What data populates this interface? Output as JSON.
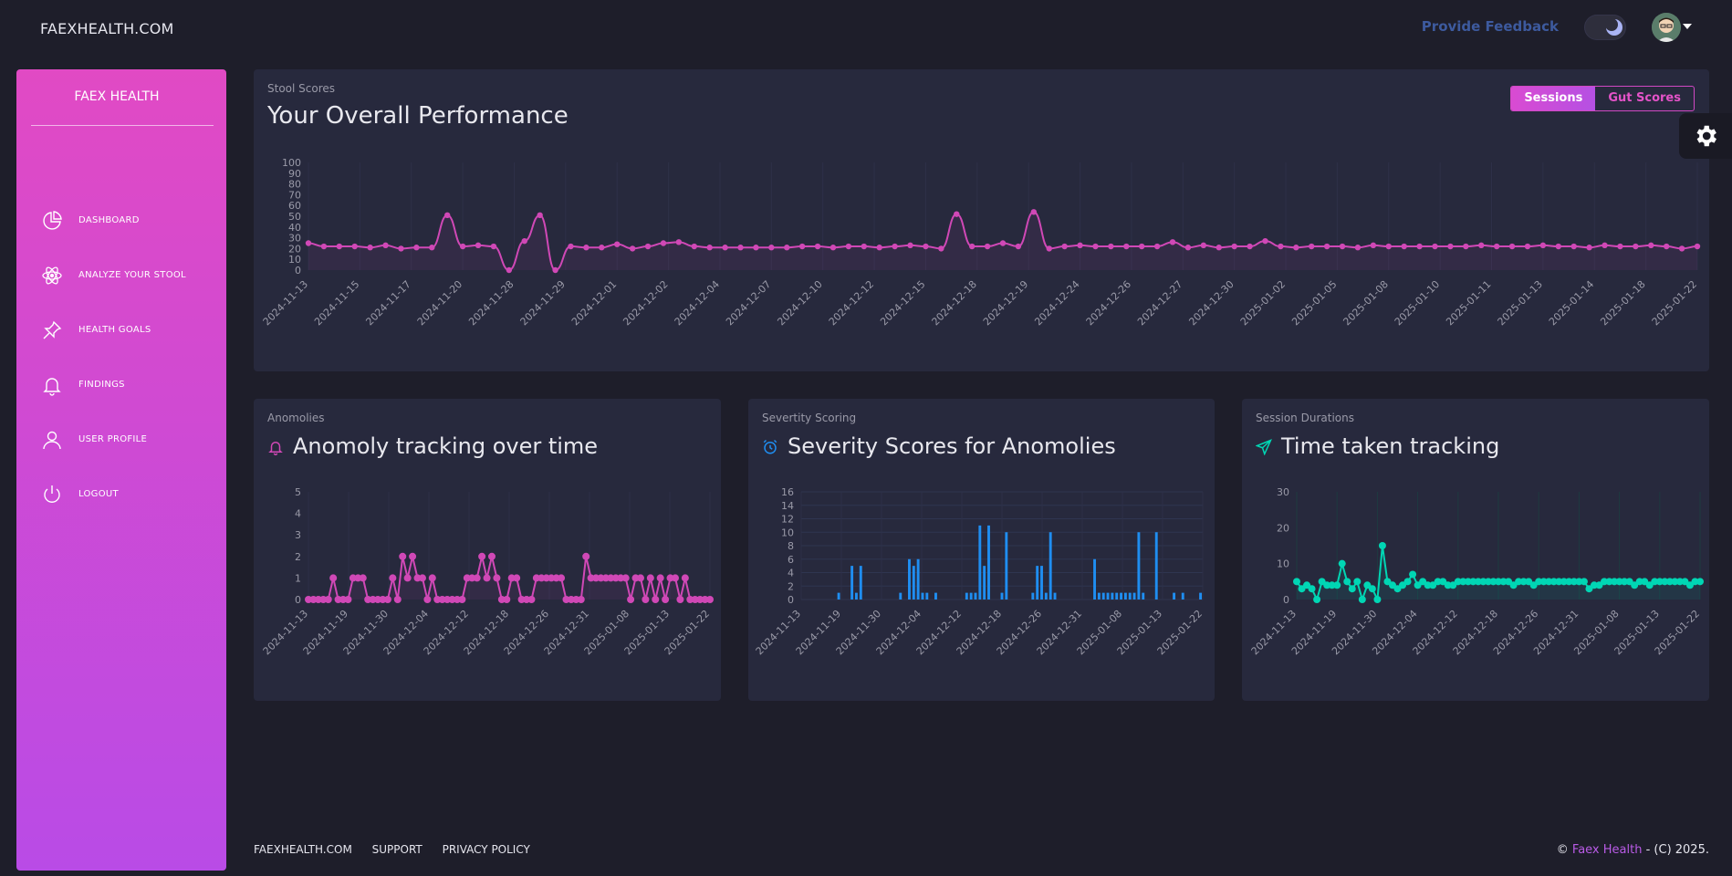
{
  "header": {
    "brand": "FAEXHEALTH.COM",
    "feedback": "Provide Feedback"
  },
  "sidebar": {
    "title": "FAEX HEALTH",
    "items": [
      {
        "label": "DASHBOARD",
        "icon": "chart-pie-icon"
      },
      {
        "label": "ANALYZE YOUR STOOL",
        "icon": "atom-icon"
      },
      {
        "label": "HEALTH GOALS",
        "icon": "pin-icon"
      },
      {
        "label": "FINDINGS",
        "icon": "bell-icon"
      },
      {
        "label": "USER PROFILE",
        "icon": "user-icon"
      },
      {
        "label": "LOGOUT",
        "icon": "power-icon"
      }
    ]
  },
  "main_chart": {
    "subtitle": "Stool Scores",
    "title": "Your Overall Performance",
    "buttons": [
      "Sessions",
      "Gut Scores"
    ],
    "active_button": "Sessions"
  },
  "cards": [
    {
      "subtitle": "Anomolies",
      "title": "Anomoly tracking over time",
      "icon": "bell-icon",
      "color": "#d048b6"
    },
    {
      "subtitle": "Severtity Scoring",
      "title": "Severity Scores for Anomolies",
      "icon": "alarm-clock-icon",
      "color": "#1f8ef1"
    },
    {
      "subtitle": "Session Durations",
      "title": "Time taken tracking",
      "icon": "send-icon",
      "color": "#00d6b4"
    }
  ],
  "chart_data": [
    {
      "type": "line",
      "ylim": [
        0,
        100
      ],
      "yticks": [
        0,
        10,
        20,
        30,
        40,
        50,
        60,
        70,
        80,
        90,
        100
      ],
      "xtick_labels": [
        "2024-11-13",
        "2024-11-15",
        "2024-11-17",
        "2024-11-20",
        "2024-11-28",
        "2024-11-29",
        "2024-12-01",
        "2024-12-02",
        "2024-12-04",
        "2024-12-07",
        "2024-12-10",
        "2024-12-12",
        "2024-12-15",
        "2024-12-18",
        "2024-12-19",
        "2024-12-24",
        "2024-12-26",
        "2024-12-27",
        "2024-12-30",
        "2025-01-02",
        "2025-01-05",
        "2025-01-08",
        "2025-01-10",
        "2025-01-11",
        "2025-01-13",
        "2025-01-14",
        "2025-01-18",
        "2025-01-22"
      ],
      "values": [
        25,
        22,
        22,
        22,
        21,
        23,
        20,
        21,
        21,
        51,
        22,
        23,
        22,
        0,
        27,
        51,
        0,
        22,
        21,
        21,
        24,
        20,
        22,
        25,
        26,
        22,
        21,
        21,
        21,
        21,
        21,
        21,
        22,
        22,
        21,
        22,
        22,
        21,
        22,
        23,
        22,
        20,
        52,
        22,
        22,
        25,
        22,
        54,
        20,
        22,
        23,
        22,
        22,
        22,
        22,
        22,
        26,
        21,
        23,
        21,
        22,
        22,
        27,
        22,
        21,
        22,
        22,
        22,
        21,
        23,
        22,
        22,
        22,
        22,
        22,
        22,
        23,
        22,
        22,
        22,
        23,
        22,
        22,
        21,
        23,
        22,
        22,
        23,
        22,
        20,
        22
      ]
    },
    {
      "type": "line",
      "ylim": [
        0,
        5
      ],
      "yticks": [
        0,
        1,
        2,
        3,
        4,
        5
      ],
      "xtick_labels": [
        "2024-11-13",
        "2024-11-19",
        "2024-11-30",
        "2024-12-04",
        "2024-12-12",
        "2024-12-18",
        "2024-12-26",
        "2024-12-31",
        "2025-01-08",
        "2025-01-13",
        "2025-01-22"
      ],
      "values": [
        0,
        0,
        0,
        0,
        0,
        1,
        0,
        0,
        0,
        1,
        1,
        1,
        0,
        0,
        0,
        0,
        0,
        1,
        0,
        2,
        1,
        2,
        1,
        1,
        0,
        1,
        0,
        0,
        0,
        0,
        0,
        0,
        1,
        1,
        1,
        2,
        1,
        2,
        1,
        0,
        0,
        1,
        1,
        0,
        0,
        0,
        1,
        1,
        1,
        1,
        1,
        1,
        0,
        0,
        0,
        0,
        2,
        1,
        1,
        1,
        1,
        1,
        1,
        1,
        1,
        0,
        1,
        1,
        0,
        1,
        0,
        1,
        0,
        1,
        1,
        0,
        1,
        0,
        0,
        0,
        0,
        0
      ]
    },
    {
      "type": "bar",
      "ylim": [
        0,
        16
      ],
      "yticks": [
        0,
        2,
        4,
        6,
        8,
        10,
        12,
        14,
        16
      ],
      "xtick_labels": [
        "2024-11-13",
        "2024-11-19",
        "2024-11-30",
        "2024-12-04",
        "2024-12-12",
        "2024-12-18",
        "2024-12-26",
        "2024-12-31",
        "2025-01-08",
        "2025-01-13",
        "2025-01-22"
      ],
      "values": [
        0,
        0,
        0,
        0,
        0,
        0,
        0,
        0,
        1,
        0,
        0,
        5,
        1,
        5,
        0,
        0,
        0,
        0,
        0,
        0,
        0,
        0,
        1,
        0,
        6,
        5,
        6,
        1,
        1,
        0,
        1,
        0,
        0,
        0,
        0,
        0,
        0,
        1,
        1,
        1,
        11,
        5,
        11,
        0,
        0,
        1,
        10,
        0,
        0,
        0,
        0,
        0,
        1,
        5,
        5,
        1,
        10,
        1,
        0,
        0,
        0,
        0,
        0,
        0,
        0,
        0,
        6,
        1,
        1,
        1,
        1,
        1,
        1,
        1,
        1,
        1,
        10,
        1,
        0,
        0,
        10,
        0,
        0,
        0,
        1,
        0,
        1,
        0,
        0,
        0,
        1
      ]
    },
    {
      "type": "line",
      "ylim": [
        0,
        30
      ],
      "yticks": [
        0,
        10,
        20,
        30
      ],
      "xtick_labels": [
        "2024-11-13",
        "2024-11-19",
        "2024-11-30",
        "2024-12-04",
        "2024-12-12",
        "2024-12-18",
        "2024-12-26",
        "2024-12-31",
        "2025-01-08",
        "2025-01-13",
        "2025-01-22"
      ],
      "values": [
        5,
        3,
        4,
        3,
        0,
        5,
        4,
        4,
        4,
        10,
        5,
        3,
        5,
        0,
        4,
        3,
        0,
        15,
        5,
        4,
        3,
        4,
        5,
        7,
        4,
        5,
        4,
        4,
        5,
        5,
        4,
        4,
        5,
        5,
        5,
        5,
        5,
        5,
        5,
        5,
        5,
        5,
        5,
        4,
        5,
        5,
        5,
        4,
        5,
        5,
        5,
        5,
        5,
        5,
        5,
        5,
        5,
        5,
        3,
        4,
        4,
        5,
        5,
        5,
        5,
        5,
        5,
        4,
        5,
        5,
        4,
        5,
        5,
        5,
        5,
        5,
        5,
        5,
        4,
        5,
        5
      ]
    }
  ],
  "footer": {
    "links": [
      "FAEXHEALTH.COM",
      "SUPPORT",
      "PRIVACY POLICY"
    ],
    "copy_prefix": "©",
    "copy_brand": "Faex Health",
    "copy_suffix": "- (C) 2025."
  }
}
